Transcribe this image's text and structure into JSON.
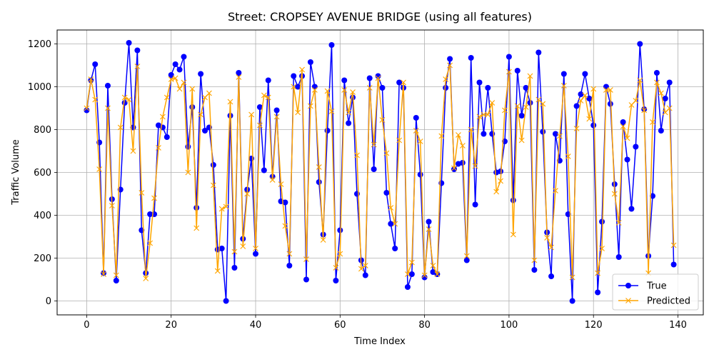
{
  "chart_data": {
    "type": "line",
    "title": "Street: CROPSEY AVENUE BRIDGE (using all features)",
    "xlabel": "Time Index",
    "ylabel": "Traffic Volume",
    "xlim": [
      -7,
      146
    ],
    "ylim": [
      -65,
      1265
    ],
    "xticks": [
      0,
      20,
      40,
      60,
      80,
      100,
      120,
      140
    ],
    "yticks": [
      0,
      200,
      400,
      600,
      800,
      1000,
      1200
    ],
    "grid": true,
    "legend_position": "lower right",
    "series": [
      {
        "name": "True",
        "color": "#0000ff",
        "marker": "circle",
        "values": [
          890,
          1030,
          1105,
          740,
          130,
          1005,
          475,
          95,
          520,
          925,
          1205,
          810,
          1170,
          330,
          130,
          405,
          405,
          820,
          810,
          765,
          1055,
          1105,
          1080,
          1140,
          720,
          905,
          435,
          1060,
          795,
          810,
          635,
          240,
          245,
          0,
          865,
          155,
          1065,
          290,
          520,
          665,
          220,
          905,
          610,
          1030,
          580,
          890,
          465,
          460,
          165,
          1050,
          1000,
          1050,
          100,
          1115,
          1000,
          555,
          310,
          795,
          1195,
          95,
          330,
          1030,
          830,
          950,
          500,
          190,
          120,
          1040,
          615,
          1050,
          995,
          505,
          360,
          245,
          1020,
          995,
          65,
          125,
          855,
          590,
          110,
          370,
          135,
          125,
          550,
          995,
          1130,
          615,
          640,
          645,
          190,
          1135,
          450,
          1020,
          780,
          995,
          780,
          600,
          605,
          745,
          1140,
          470,
          1075,
          865,
          995,
          925,
          145,
          1160,
          790,
          320,
          115,
          780,
          655,
          1060,
          405,
          0,
          910,
          965,
          1060,
          945,
          820,
          40,
          370,
          1000,
          920,
          545,
          205,
          835,
          660,
          430,
          720,
          1200,
          895,
          210,
          490,
          1065,
          795,
          945,
          1020,
          170
        ]
      },
      {
        "name": "Predicted",
        "color": "#ffa500",
        "marker": "x",
        "values": [
          900,
          1035,
          940,
          615,
          125,
          900,
          445,
          120,
          810,
          950,
          940,
          700,
          1095,
          505,
          105,
          270,
          480,
          715,
          860,
          950,
          1035,
          1040,
          990,
          1020,
          600,
          990,
          340,
          870,
          950,
          970,
          540,
          140,
          430,
          440,
          930,
          230,
          1045,
          255,
          500,
          870,
          245,
          820,
          960,
          950,
          565,
          860,
          545,
          350,
          220,
          1000,
          880,
          1080,
          195,
          910,
          985,
          625,
          285,
          980,
          885,
          155,
          220,
          985,
          880,
          975,
          680,
          150,
          165,
          995,
          730,
          1040,
          845,
          690,
          435,
          360,
          750,
          1020,
          125,
          180,
          795,
          745,
          120,
          335,
          165,
          125,
          770,
          1035,
          1100,
          620,
          775,
          725,
          210,
          800,
          630,
          860,
          870,
          870,
          925,
          510,
          560,
          890,
          1070,
          310,
          910,
          750,
          905,
          1050,
          190,
          940,
          920,
          295,
          250,
          515,
          770,
          1005,
          675,
          110,
          805,
          935,
          960,
          850,
          990,
          130,
          245,
          985,
          985,
          500,
          365,
          815,
          760,
          915,
          935,
          1030,
          890,
          130,
          835,
          1020,
          970,
          880,
          900,
          260
        ]
      }
    ]
  }
}
